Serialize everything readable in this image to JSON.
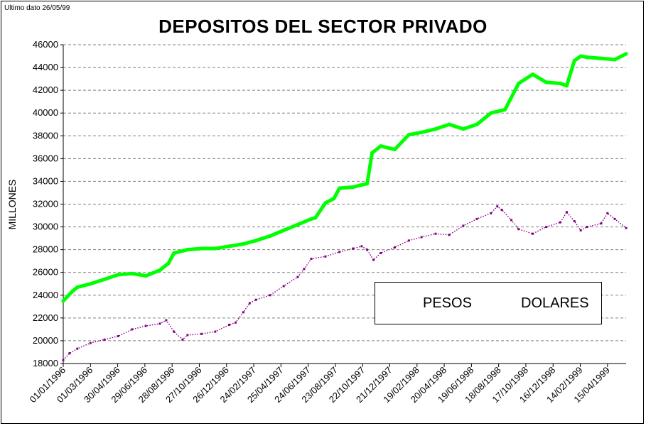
{
  "note": "Ultimo dato 26/05/99",
  "chart_data": {
    "type": "line",
    "title": "DEPOSITOS DEL SECTOR PRIVADO",
    "ylabel": "MILLONES",
    "xlabel": "",
    "ylim": [
      18000,
      46000
    ],
    "yticks": [
      18000,
      20000,
      22000,
      24000,
      26000,
      28000,
      30000,
      32000,
      34000,
      36000,
      38000,
      40000,
      42000,
      44000,
      46000
    ],
    "xlim": [
      "1996-01-01",
      "1999-05-26"
    ],
    "xticks": [
      "01/01/1996",
      "01/03/1996",
      "30/04/1996",
      "29/06/1996",
      "28/08/1996",
      "27/10/1996",
      "26/12/1996",
      "24/02/1997",
      "25/04/1997",
      "24/06/1997",
      "23/08/1997",
      "22/10/1997",
      "21/12/1997",
      "19/02/1998",
      "20/04/1998",
      "19/06/1998",
      "18/08/1998",
      "17/10/1998",
      "16/12/1998",
      "14/02/1999",
      "15/04/1999"
    ],
    "grid": true,
    "legend_position": "bottom-right",
    "series": [
      {
        "name": "PESOS",
        "color": "#800080",
        "style": "dotted-markers",
        "x": [
          "1996-01-01",
          "1996-01-15",
          "1996-02-01",
          "1996-03-01",
          "1996-04-01",
          "1996-05-01",
          "1996-06-01",
          "1996-07-01",
          "1996-08-01",
          "1996-08-15",
          "1996-09-01",
          "1996-09-20",
          "1996-10-01",
          "1996-11-01",
          "1996-12-01",
          "1997-01-01",
          "1997-01-15",
          "1997-02-01",
          "1997-02-15",
          "1997-03-01",
          "1997-04-01",
          "1997-05-01",
          "1997-06-01",
          "1997-06-15",
          "1997-07-01",
          "1997-08-01",
          "1997-09-01",
          "1997-10-01",
          "1997-10-20",
          "1997-11-01",
          "1997-11-15",
          "1997-12-01",
          "1998-01-01",
          "1998-02-01",
          "1998-03-01",
          "1998-04-01",
          "1998-05-01",
          "1998-06-01",
          "1998-07-01",
          "1998-08-01",
          "1998-08-15",
          "1998-08-25",
          "1998-09-15",
          "1998-10-01",
          "1998-11-01",
          "1998-12-01",
          "1999-01-01",
          "1999-01-15",
          "1999-02-01",
          "1999-02-15",
          "1999-03-01",
          "1999-04-01",
          "1999-04-15",
          "1999-05-01",
          "1999-05-26"
        ],
        "values": [
          18300,
          18900,
          19300,
          19800,
          20100,
          20400,
          21000,
          21300,
          21500,
          21800,
          20800,
          20100,
          20500,
          20600,
          20800,
          21400,
          21600,
          22500,
          23300,
          23600,
          24000,
          24800,
          25600,
          26300,
          27200,
          27400,
          27800,
          28100,
          28300,
          28000,
          27100,
          27700,
          28200,
          28800,
          29100,
          29400,
          29300,
          30100,
          30700,
          31200,
          31800,
          31500,
          30600,
          29800,
          29400,
          30000,
          30400,
          31300,
          30500,
          29700,
          30000,
          30300,
          31200,
          30700,
          29900
        ]
      },
      {
        "name": "DOLARES",
        "color": "#00ff00",
        "style": "thick-line",
        "x": [
          "1996-01-01",
          "1996-01-20",
          "1996-02-01",
          "1996-03-01",
          "1996-04-01",
          "1996-05-01",
          "1996-06-01",
          "1996-07-01",
          "1996-08-01",
          "1996-08-20",
          "1996-09-01",
          "1996-10-01",
          "1996-11-01",
          "1996-12-01",
          "1997-01-01",
          "1997-02-01",
          "1997-03-01",
          "1997-04-01",
          "1997-05-01",
          "1997-06-01",
          "1997-07-01",
          "1997-07-10",
          "1997-08-01",
          "1997-08-20",
          "1997-09-01",
          "1997-10-01",
          "1997-11-01",
          "1997-11-12",
          "1997-12-01",
          "1998-01-01",
          "1998-02-01",
          "1998-03-01",
          "1998-04-01",
          "1998-05-01",
          "1998-06-01",
          "1998-07-01",
          "1998-08-01",
          "1998-09-01",
          "1998-10-01",
          "1998-11-01",
          "1998-12-01",
          "1999-01-01",
          "1999-01-15",
          "1999-02-01",
          "1999-02-15",
          "1999-03-01",
          "1999-04-01",
          "1999-05-01",
          "1999-05-26"
        ],
        "values": [
          23500,
          24300,
          24700,
          25000,
          25400,
          25800,
          25900,
          25700,
          26200,
          26800,
          27700,
          28000,
          28100,
          28100,
          28300,
          28500,
          28800,
          29200,
          29700,
          30200,
          30700,
          30800,
          32100,
          32500,
          33400,
          33500,
          33800,
          36500,
          37100,
          36800,
          38100,
          38300,
          38600,
          39000,
          38600,
          39000,
          40000,
          40300,
          42600,
          43400,
          42700,
          42600,
          42400,
          44600,
          45000,
          44900,
          44800,
          44700,
          45200
        ]
      }
    ]
  }
}
